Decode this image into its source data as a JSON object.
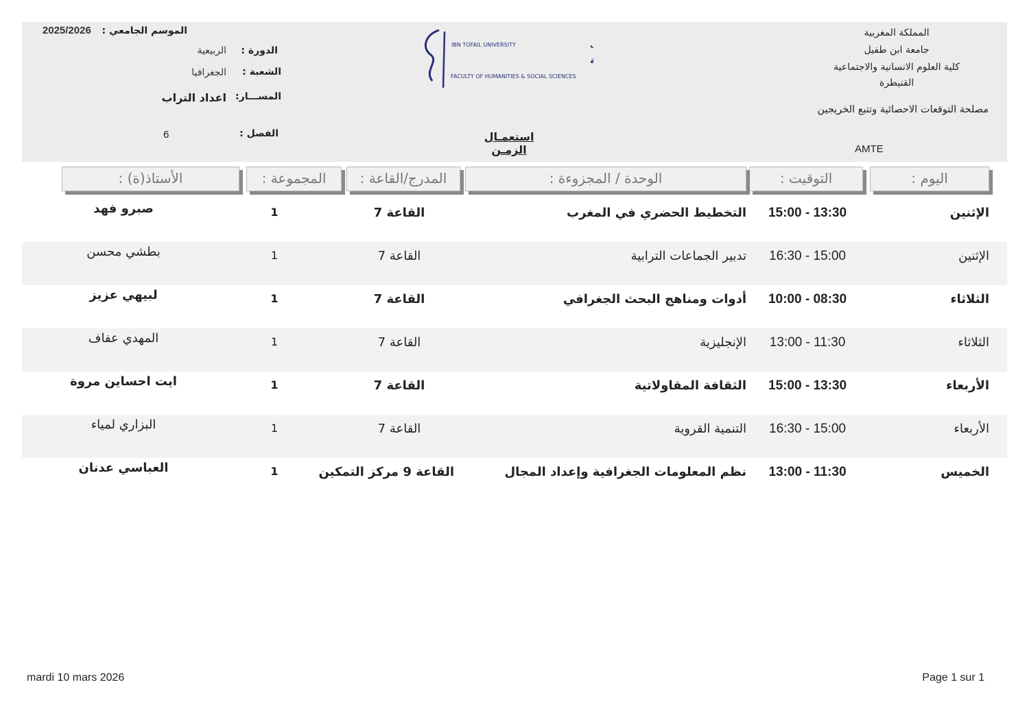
{
  "header_right": {
    "lines": [
      "المملكة المغربية",
      "جامعة ابن طفيل",
      "كلية العلوم الانسانية والاجتماعية",
      "القنيطرة"
    ],
    "service": "مصلحة التوقعات الاحصائية وتتبع الخريجين",
    "code": "AMTE"
  },
  "logo": {
    "line1": "IBN TOFAIL UNIVERSITY جامعة ابن طفيل",
    "line2": "كلية العلوم الإنسانية و الاجتماعية",
    "line3": "FACULTY OF HUMANITIES & SOCIAL SCIENCES",
    "color": "#2a2f7a"
  },
  "title": "استعمـال الزمـن",
  "header_left": {
    "season_label": "الموسم الجامعي :",
    "season_value": "2025/2026",
    "session_label": "الدورة :",
    "session_value": "الربيعية",
    "branch_label": "الشعبة :",
    "branch_value": "الجغرافيا",
    "track_label": "المســـار:",
    "track_value": "اعداد التراب",
    "semester_label": "الفصل :",
    "semester_value": "6"
  },
  "table": {
    "headers": {
      "day": "اليوم :",
      "time": "التوقيت :",
      "module": "الوحدة / المجزوءة :",
      "room": "المدرج/القاعة :",
      "group": "المجموعة :",
      "teacher": "الأستاذ(ة) :"
    },
    "rows": [
      {
        "day": "الإثنين",
        "time": "13:30 - 15:00",
        "module": "التخطيط الحضري في المغرب",
        "room": "القاعة 7",
        "group": "1",
        "teacher": "صبرو فهد"
      },
      {
        "day": "الإثنين",
        "time": "15:00 - 16:30",
        "module": "تدبير الجماعات الترابية",
        "room": "القاعة 7",
        "group": "1",
        "teacher": "بطشي محسن"
      },
      {
        "day": "الثلاثاء",
        "time": "08:30 - 10:00",
        "module": "أدوات ومناهج البحث الجغرافي",
        "room": "القاعة 7",
        "group": "1",
        "teacher": "لبيهي عزيز"
      },
      {
        "day": "الثلاثاء",
        "time": "11:30 - 13:00",
        "module": "الإنجليزية",
        "room": "القاعة 7",
        "group": "1",
        "teacher": "المهدي عفاف"
      },
      {
        "day": "الأربعاء",
        "time": "13:30 - 15:00",
        "module": "الثقافة المقاولاتية",
        "room": "القاعة 7",
        "group": "1",
        "teacher": "ايت احساين مروة"
      },
      {
        "day": "الأربعاء",
        "time": "15:00 - 16:30",
        "module": "التنمية القروية",
        "room": "القاعة 7",
        "group": "1",
        "teacher": "البزاري لمياء"
      },
      {
        "day": "الخميس",
        "time": "11:30 - 13:00",
        "module": "نظم المعلومات الجغرافية وإعداد المجال",
        "room": "القاعة 9 مركز التمكين",
        "group": "1",
        "teacher": "العباسي عدنان"
      }
    ]
  },
  "footer": {
    "date": "mardi 10 mars 2026",
    "page": "Page 1 sur 1"
  }
}
